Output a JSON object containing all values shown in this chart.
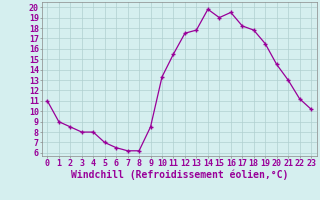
{
  "x": [
    0,
    1,
    2,
    3,
    4,
    5,
    6,
    7,
    8,
    9,
    10,
    11,
    12,
    13,
    14,
    15,
    16,
    17,
    18,
    19,
    20,
    21,
    22,
    23
  ],
  "y": [
    11.0,
    9.0,
    8.5,
    8.0,
    8.0,
    7.0,
    6.5,
    6.2,
    6.2,
    8.5,
    13.3,
    15.5,
    17.5,
    17.8,
    19.8,
    19.0,
    19.5,
    18.2,
    17.8,
    16.5,
    14.5,
    13.0,
    11.2,
    10.2
  ],
  "line_color": "#990099",
  "marker": "+",
  "markersize": 3.5,
  "linewidth": 0.9,
  "xlabel": "Windchill (Refroidissement éolien,°C)",
  "xlabel_fontsize": 7.0,
  "ylabel_ticks": [
    6,
    7,
    8,
    9,
    10,
    11,
    12,
    13,
    14,
    15,
    16,
    17,
    18,
    19,
    20
  ],
  "xticks": [
    0,
    1,
    2,
    3,
    4,
    5,
    6,
    7,
    8,
    9,
    10,
    11,
    12,
    13,
    14,
    15,
    16,
    17,
    18,
    19,
    20,
    21,
    22,
    23
  ],
  "xlim": [
    -0.5,
    23.5
  ],
  "ylim": [
    5.7,
    20.5
  ],
  "bg_color": "#d5efef",
  "grid_color": "#b0d0d0",
  "tick_color": "#990099",
  "tick_fontsize": 6.0,
  "spine_color": "#888888"
}
